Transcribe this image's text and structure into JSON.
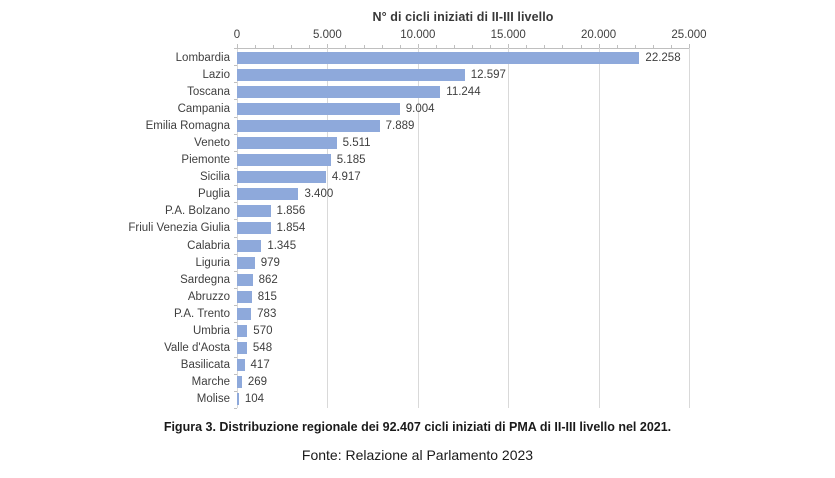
{
  "chart_data": {
    "type": "bar",
    "orientation": "horizontal",
    "title": "N° di cicli iniziati di II-III livello",
    "categories": [
      "Lombardia",
      "Lazio",
      "Toscana",
      "Campania",
      "Emilia Romagna",
      "Veneto",
      "Piemonte",
      "Sicilia",
      "Puglia",
      "P.A. Bolzano",
      "Friuli Venezia Giulia",
      "Calabria",
      "Liguria",
      "Sardegna",
      "Abruzzo",
      "P.A. Trento",
      "Umbria",
      "Valle d'Aosta",
      "Basilicata",
      "Marche",
      "Molise"
    ],
    "values": [
      22258,
      12597,
      11244,
      9004,
      7889,
      5511,
      5185,
      4917,
      3400,
      1856,
      1854,
      1345,
      979,
      862,
      815,
      783,
      570,
      548,
      417,
      269,
      104
    ],
    "value_labels": [
      "22.258",
      "12.597",
      "11.244",
      "9.004",
      "7.889",
      "5.511",
      "5.185",
      "4.917",
      "3.400",
      "1.856",
      "1.854",
      "1.345",
      "979",
      "862",
      "815",
      "783",
      "570",
      "548",
      "417",
      "269",
      "104"
    ],
    "xlim": [
      0,
      25000
    ],
    "x_ticks": [
      {
        "value": 0,
        "label": "0"
      },
      {
        "value": 5000,
        "label": "5.000"
      },
      {
        "value": 10000,
        "label": "10.000"
      },
      {
        "value": 15000,
        "label": "15.000"
      },
      {
        "value": 20000,
        "label": "20.000"
      },
      {
        "value": 25000,
        "label": "25.000"
      }
    ],
    "minor_tick_step": 1000,
    "grid": true,
    "legend": "none",
    "bar_color": "#8EA9DB",
    "gridline_color": "#D9D9D9",
    "axis_color": "#BFBFBF",
    "text_color": "#3F3F3F"
  },
  "caption": "Figura 3. Distribuzione regionale dei 92.407 cicli iniziati di PMA di II-III livello nel 2021.",
  "source": "Fonte: Relazione al Parlamento 2023"
}
